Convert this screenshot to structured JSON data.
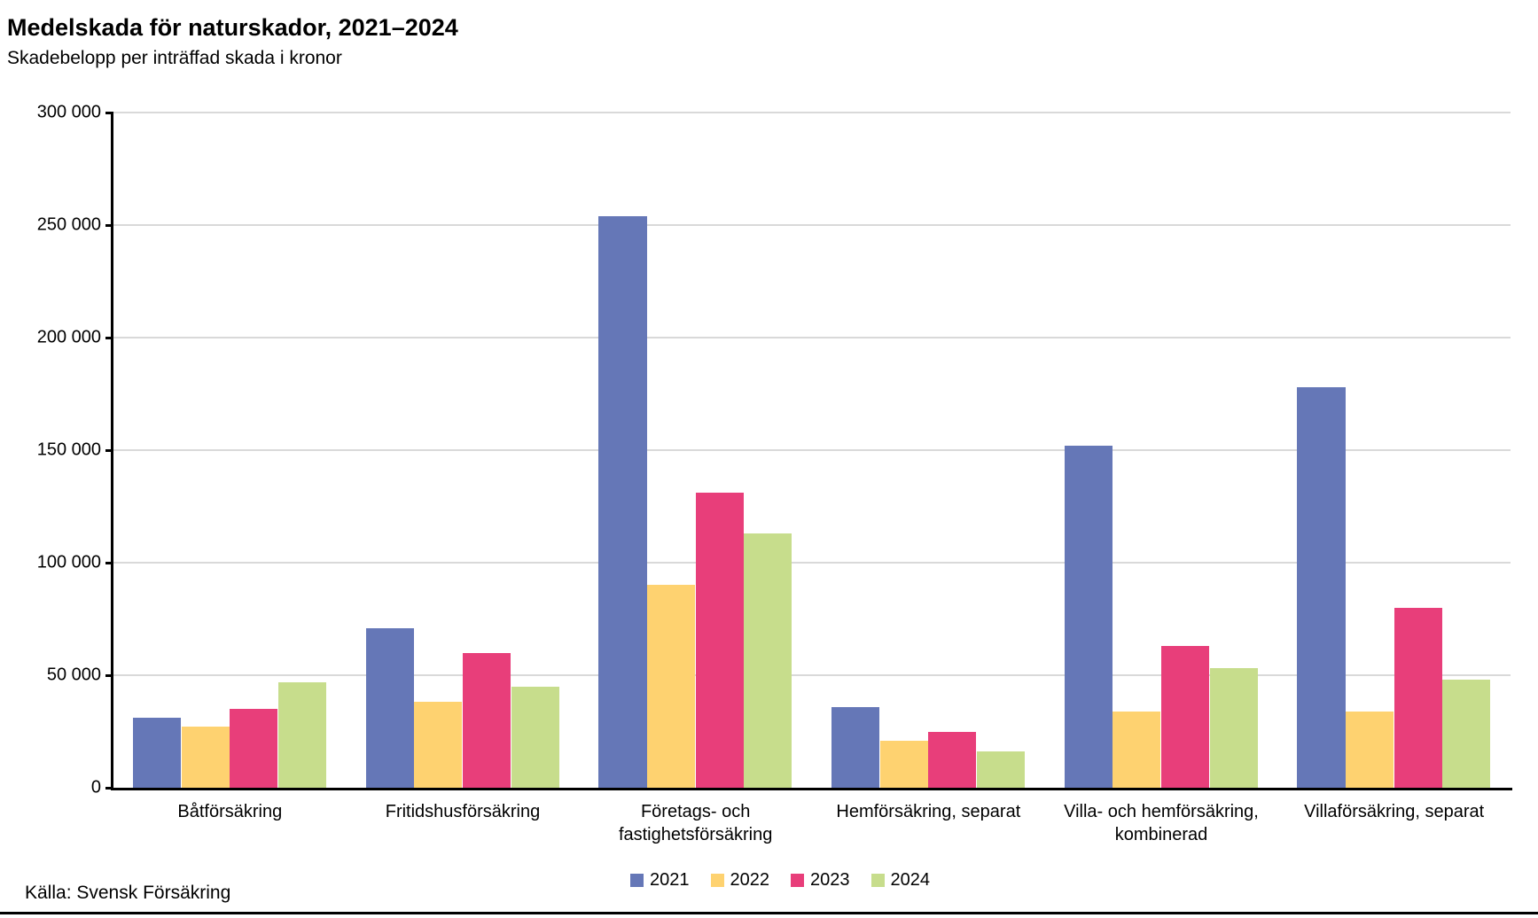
{
  "header": {
    "title": "Medelskada för naturskador, 2021–2024",
    "subtitle": "Skadebelopp per inträffad skada i kronor"
  },
  "source": "Källa: Svensk Försäkring",
  "colors": {
    "series_2021": "#6577B7",
    "series_2022": "#FED270",
    "series_2023": "#E83E7A",
    "series_2024": "#C7DD8C",
    "gridline": "#D9D9D9",
    "axis": "#000000",
    "text": "#000000"
  },
  "chart_data": {
    "type": "bar",
    "title": "Medelskada för naturskador, 2021–2024",
    "subtitle": "Skadebelopp per inträffad skada i kronor",
    "categories": [
      "Båtförsäkring",
      "Fritidshusförsäkring",
      "Företags- och\nfastighetsförsäkring",
      "Hemförsäkring, separat",
      "Villa- och hemförsäkring,\nkombinerad",
      "Villaförsäkring, separat"
    ],
    "series": [
      {
        "name": "2021",
        "color": "#6577B7",
        "values": [
          31000,
          71000,
          254000,
          36000,
          152000,
          178000
        ]
      },
      {
        "name": "2022",
        "color": "#FED270",
        "values": [
          27000,
          38000,
          90000,
          21000,
          34000,
          34000
        ]
      },
      {
        "name": "2023",
        "color": "#E83E7A",
        "values": [
          35000,
          60000,
          131000,
          25000,
          63000,
          80000
        ]
      },
      {
        "name": "2024",
        "color": "#C7DD8C",
        "values": [
          47000,
          45000,
          113000,
          16000,
          53000,
          48000
        ]
      }
    ],
    "xlabel": "",
    "ylabel": "",
    "ylim": [
      0,
      300000
    ],
    "ytick_interval": 50000,
    "ytick_labels": [
      "0",
      "50 000",
      "100 000",
      "150 000",
      "200 000",
      "250 000",
      "300 000"
    ],
    "grid": true,
    "legend_position": "bottom-center",
    "legend_entries": [
      "2021",
      "2022",
      "2023",
      "2024"
    ]
  }
}
